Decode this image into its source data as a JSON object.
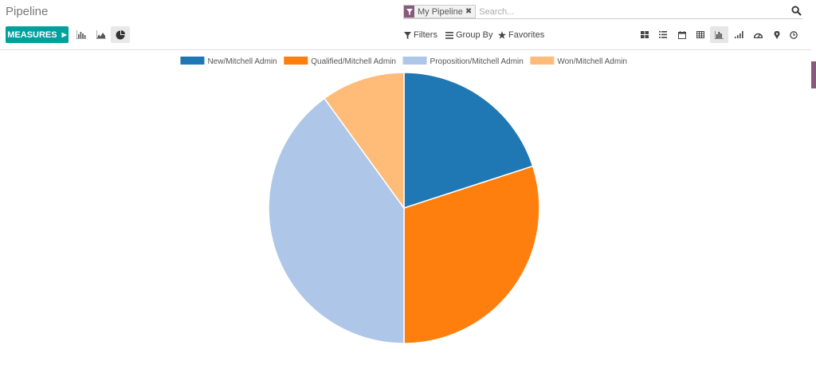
{
  "breadcrumb": "Pipeline",
  "search": {
    "facet_label": "My Pipeline",
    "placeholder": "Search..."
  },
  "toolbar": {
    "measures_label": "MEASURES",
    "filters_label": "Filters",
    "groupby_label": "Group By",
    "favorites_label": "Favorites"
  },
  "graph_modes": [
    "bar-chart-icon",
    "line-chart-icon",
    "pie-chart-icon"
  ],
  "active_graph_mode": "pie-chart-icon",
  "view_switcher": [
    "kanban-view-icon",
    "list-view-icon",
    "calendar-view-icon",
    "pivot-view-icon",
    "graph-view-icon",
    "cohort-view-icon",
    "dashboard-view-icon",
    "map-view-icon",
    "activity-view-icon"
  ],
  "active_view": "graph-view-icon",
  "colors": {
    "accent": "#00a09d",
    "brand": "#875a7b"
  },
  "chart_data": {
    "type": "pie",
    "legend_position": "top",
    "series": [
      {
        "name": "New/Mitchell Admin",
        "value": 2,
        "color": "#1f77b4"
      },
      {
        "name": "Qualified/Mitchell Admin",
        "value": 3,
        "color": "#ff7f0e"
      },
      {
        "name": "Proposition/Mitchell Admin",
        "value": 4,
        "color": "#aec7e8"
      },
      {
        "name": "Won/Mitchell Admin",
        "value": 1,
        "color": "#ffbb78"
      }
    ]
  }
}
